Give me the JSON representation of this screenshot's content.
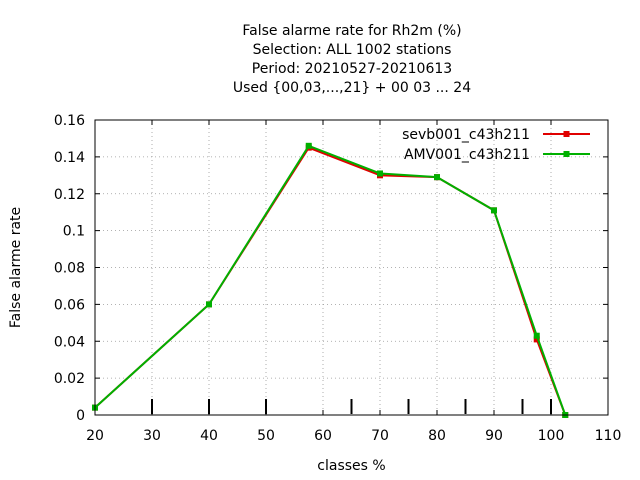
{
  "chart_data": {
    "type": "line",
    "title_lines": [
      "False alarme rate  for Rh2m (%)",
      "Selection: ALL   1002 stations",
      "Period: 20210527-20210613",
      "Used {00,03,...,21} + 00 03 ... 24"
    ],
    "xlabel": "classes %",
    "ylabel": "False alarme rate",
    "xlim": [
      20,
      110
    ],
    "ylim": [
      0,
      0.16
    ],
    "xticks": [
      20,
      30,
      40,
      50,
      60,
      70,
      80,
      90,
      100,
      110
    ],
    "xtick_labels": [
      "20",
      "30",
      "40",
      "50",
      "60",
      "70",
      "80",
      "90",
      "100",
      "110"
    ],
    "yticks": [
      0,
      0.02,
      0.04,
      0.06,
      0.08,
      0.1,
      0.12,
      0.14,
      0.16
    ],
    "ytick_labels": [
      "0",
      "0.02",
      "0.04",
      "0.06",
      "0.08",
      "0.1",
      "0.12",
      "0.14",
      "0.16"
    ],
    "class_marks": [
      30,
      40,
      50,
      65,
      75,
      85,
      95,
      100
    ],
    "grid": true,
    "legend_position": "top-right",
    "series": [
      {
        "name": "sevb001_c43h211",
        "color": "#e00000",
        "x": [
          20,
          40,
          57.5,
          70,
          80,
          90,
          97.5,
          102.5
        ],
        "y": [
          0.004,
          0.06,
          0.145,
          0.13,
          0.129,
          0.111,
          0.041,
          0.0
        ]
      },
      {
        "name": "AMV001_c43h211",
        "color": "#00b000",
        "x": [
          20,
          40,
          57.5,
          70,
          80,
          90,
          97.5,
          102.5
        ],
        "y": [
          0.004,
          0.06,
          0.146,
          0.131,
          0.129,
          0.111,
          0.043,
          0.0
        ]
      }
    ]
  }
}
